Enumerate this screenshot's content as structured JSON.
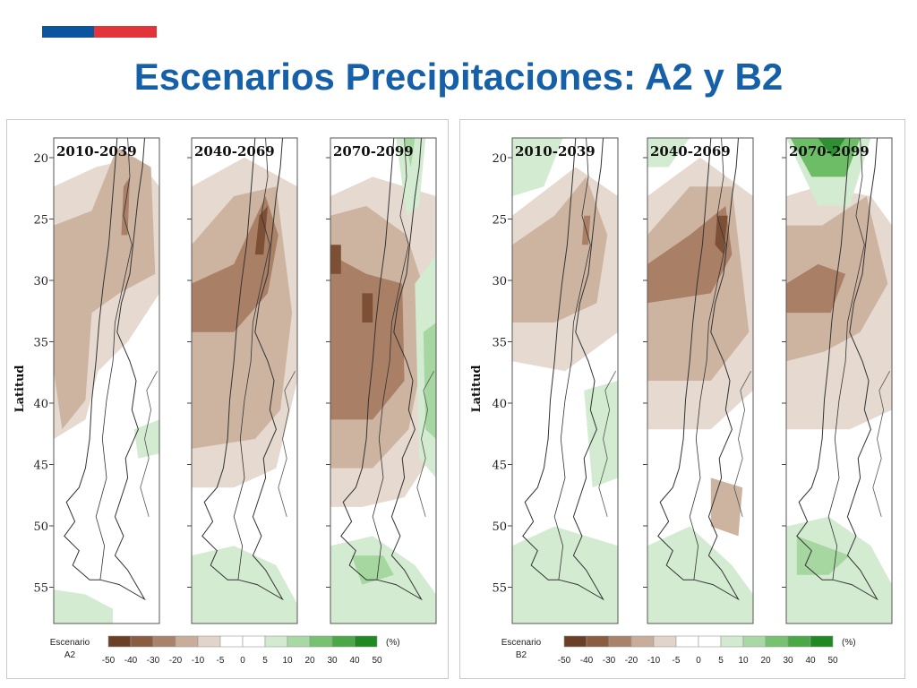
{
  "slide": {
    "title": "Escenarios Precipitaciones: A2 y B2",
    "colors": {
      "title": "#1560a8",
      "flag_blue": "#0b55a0",
      "flag_red": "#e3343c"
    }
  },
  "chart_data": {
    "type": "heatmap",
    "ylabel": "Latitud",
    "y_ticks": [
      "20",
      "25",
      "30",
      "35",
      "40",
      "45",
      "50",
      "55"
    ],
    "scenarios": [
      {
        "id": "a2",
        "legend_title": "Escenario",
        "legend_name": "A2",
        "periods": [
          "2010-2039",
          "2040-2069",
          "2070-2099"
        ]
      },
      {
        "id": "b2",
        "legend_title": "Escenario",
        "legend_name": "B2",
        "periods": [
          "2010-2039",
          "2040-2069",
          "2070-2099"
        ]
      }
    ],
    "legend": {
      "unit": "(%)",
      "ticks": [
        "-50",
        "-40",
        "-30",
        "-20",
        "-10",
        "-5",
        "0",
        "5",
        "10",
        "20",
        "30",
        "40",
        "50"
      ],
      "colors": [
        "#6b3f25",
        "#8a5c40",
        "#a8836a",
        "#c7ad9a",
        "#e2d4c9",
        "#ffffff",
        "#ffffff",
        "#d2ebd0",
        "#a8d8a3",
        "#76c270",
        "#4aa847",
        "#1f8a24"
      ]
    }
  }
}
